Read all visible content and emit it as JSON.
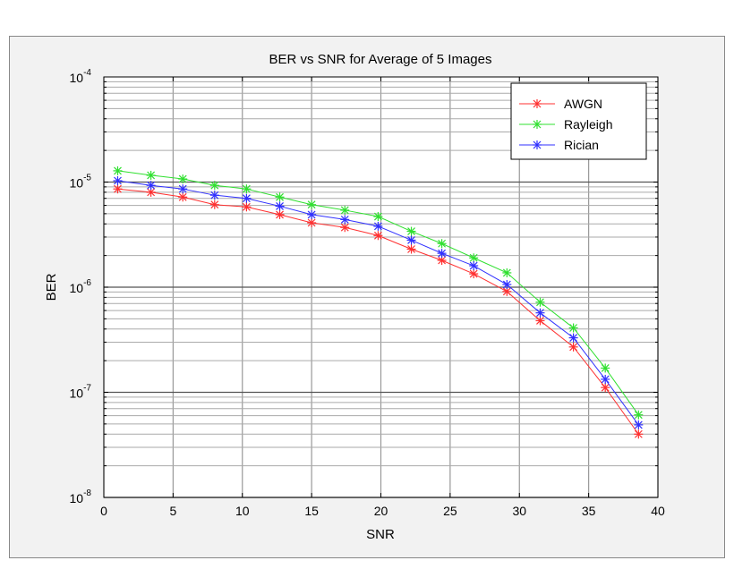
{
  "chart_data": {
    "type": "line",
    "title": "BER vs SNR for Average of 5 Images",
    "xlabel": "SNR",
    "ylabel": "BER",
    "xlim": [
      0,
      40
    ],
    "ylim": [
      1e-08,
      0.0001
    ],
    "yscale": "log",
    "grid": true,
    "legend_position": "top-right",
    "x_ticks": [
      "0",
      "5",
      "10",
      "15",
      "20",
      "25",
      "30",
      "35",
      "40"
    ],
    "y_ticks": [
      {
        "base": "10",
        "exp": "-8"
      },
      {
        "base": "10",
        "exp": "-7"
      },
      {
        "base": "10",
        "exp": "-6"
      },
      {
        "base": "10",
        "exp": "-5"
      },
      {
        "base": "10",
        "exp": "-4"
      }
    ],
    "x": [
      1.0,
      3.4,
      5.7,
      8.0,
      10.3,
      12.7,
      15.0,
      17.4,
      19.8,
      22.2,
      24.4,
      26.7,
      29.1,
      31.5,
      33.9,
      36.2,
      38.6
    ],
    "series": [
      {
        "name": "AWGN",
        "color": "#ff3030",
        "values": [
          8.6e-06,
          8e-06,
          7.2e-06,
          6.1e-06,
          5.8e-06,
          4.9e-06,
          4.1e-06,
          3.7e-06,
          3.1e-06,
          2.3e-06,
          1.8e-06,
          1.34e-06,
          9.1e-07,
          4.8e-07,
          2.7e-07,
          1.11e-07,
          4e-08
        ]
      },
      {
        "name": "Rayleigh",
        "color": "#30e030",
        "values": [
          1.28e-05,
          1.16e-05,
          1.07e-05,
          9.3e-06,
          8.6e-06,
          7.2e-06,
          6.1e-06,
          5.4e-06,
          4.7e-06,
          3.4e-06,
          2.6e-06,
          1.9e-06,
          1.37e-06,
          7.2e-07,
          4.1e-07,
          1.7e-07,
          6.1e-08
        ]
      },
      {
        "name": "Rician",
        "color": "#3030ff",
        "values": [
          1.03e-05,
          9.3e-06,
          8.6e-06,
          7.5e-06,
          7e-06,
          5.9e-06,
          4.9e-06,
          4.4e-06,
          3.8e-06,
          2.8e-06,
          2.1e-06,
          1.6e-06,
          1.06e-06,
          5.7e-07,
          3.3e-07,
          1.33e-07,
          4.9e-08
        ]
      }
    ]
  }
}
